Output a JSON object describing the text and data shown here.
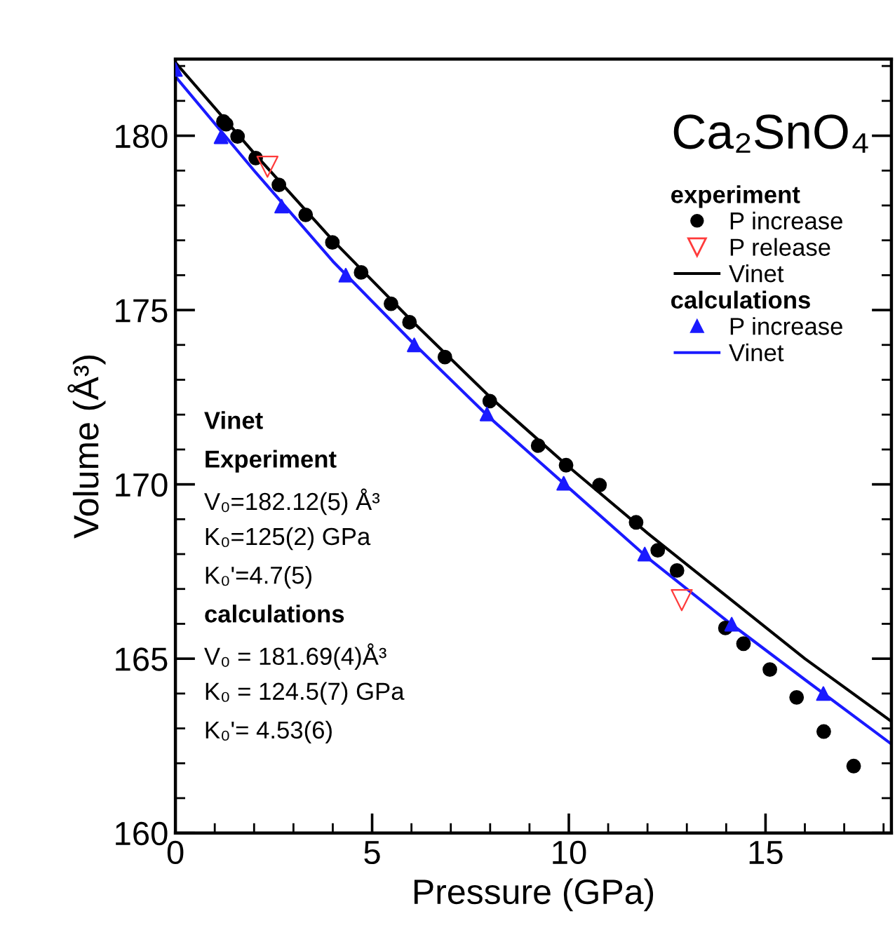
{
  "chart_data": {
    "type": "scatter",
    "title": "Ca₂SnO₄",
    "xlabel": "Pressure (GPa)",
    "ylabel": "Volume (Å³)",
    "xlim": [
      0,
      18.2
    ],
    "ylim": [
      160,
      182.2
    ],
    "xticks": [
      0,
      5,
      10,
      15
    ],
    "yticks": [
      160,
      165,
      170,
      175,
      180
    ],
    "grid": false,
    "legend": "right",
    "annotations": [
      "experiment",
      "calculations",
      "Vinet",
      "Experiment",
      "V₀=182.12(5) Å³",
      "K₀=125(2) GPa",
      "K₀'=4.7(5)",
      "calculations",
      "V₀ = 181.69(4)Å³",
      "K₀ = 124.5(7) GPa",
      "K₀'= 4.53(6)"
    ],
    "series": [
      {
        "name": "P increase",
        "marker": "circle",
        "color": "#000000",
        "x": [
          1.22,
          1.29,
          1.58,
          2.04,
          2.63,
          3.31,
          3.99,
          4.72,
          5.48,
          5.95,
          6.85,
          7.99,
          9.22,
          9.93,
          10.78,
          11.71,
          12.26,
          12.75,
          13.98,
          14.44,
          15.11,
          15.79,
          16.48,
          17.24
        ],
        "values": [
          180.41,
          180.33,
          179.98,
          179.36,
          178.59,
          177.73,
          176.94,
          176.08,
          175.18,
          174.65,
          173.65,
          172.39,
          171.11,
          170.55,
          169.98,
          168.91,
          168.11,
          167.53,
          165.88,
          165.43,
          164.69,
          163.89,
          162.91,
          161.92
        ]
      },
      {
        "name": "P release",
        "marker": "triangle_down",
        "color": "#ff3b3b",
        "x": [
          2.34,
          12.87
        ],
        "values": [
          179.11,
          166.68
        ]
      },
      {
        "name": "Vinet",
        "type": "line",
        "marker": "none",
        "color": "#000000",
        "x": [
          0,
          2,
          4,
          6,
          8,
          10,
          12,
          14,
          16,
          18.2
        ],
        "values": [
          182.1,
          179.5,
          177.0,
          174.7,
          172.5,
          170.5,
          168.6,
          166.8,
          165.0,
          163.2
        ]
      },
      {
        "name": "P increase",
        "marker": "triangle",
        "color": "#1a1aff",
        "x": [
          0,
          1.16,
          2.7,
          4.33,
          6.07,
          7.92,
          9.87,
          11.93,
          14.14,
          16.47
        ],
        "values": [
          181.9,
          179.97,
          177.98,
          176.0,
          174.0,
          172.02,
          170.03,
          168.0,
          165.99,
          164.0
        ]
      },
      {
        "name": "Vinet",
        "type": "line",
        "marker": "none",
        "color": "#1a1aff",
        "x": [
          0,
          2,
          4,
          6,
          8,
          10,
          12,
          14,
          16,
          18.2
        ],
        "values": [
          181.7,
          179.0,
          176.4,
          174.1,
          171.9,
          169.9,
          167.9,
          166.1,
          164.4,
          162.55
        ]
      }
    ]
  }
}
